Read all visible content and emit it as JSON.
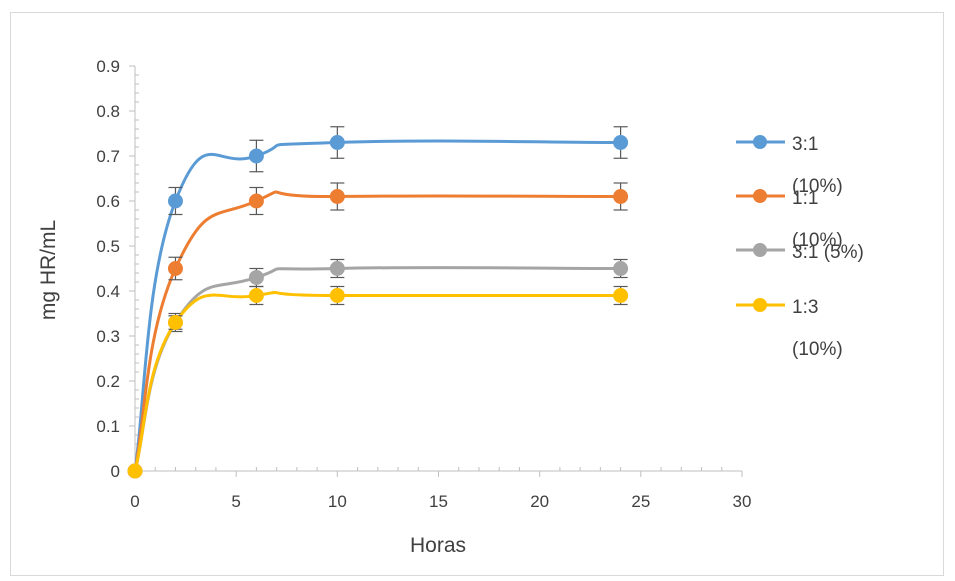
{
  "chart_data": {
    "type": "line",
    "xlabel": "Horas",
    "ylabel": "mg HR/mL",
    "xlim": [
      0,
      30
    ],
    "ylim": [
      0,
      0.9
    ],
    "xticks": [
      "0",
      "5",
      "10",
      "15",
      "20",
      "25",
      "30"
    ],
    "yticks": [
      "0",
      "0.1",
      "0.2",
      "0.3",
      "0.4",
      "0.5",
      "0.6",
      "0.7",
      "0.8",
      "0.9"
    ],
    "grid": false,
    "legend_position": "right",
    "x": [
      0,
      2,
      6,
      10,
      24
    ],
    "series": [
      {
        "name": "3:1\n(10%)",
        "color": "#5b9bd5",
        "values": [
          0,
          0.6,
          0.7,
          0.73,
          0.73
        ],
        "errors": [
          0,
          0.03,
          0.035,
          0.035,
          0.035
        ]
      },
      {
        "name": "1:1\n(10%)",
        "color": "#ed7d31",
        "values": [
          0,
          0.45,
          0.6,
          0.61,
          0.61
        ],
        "errors": [
          0,
          0.025,
          0.03,
          0.03,
          0.03
        ]
      },
      {
        "name": "3:1 (5%)",
        "color": "#a5a5a5",
        "values": [
          0,
          0.33,
          0.43,
          0.45,
          0.45
        ],
        "errors": [
          0,
          0.02,
          0.02,
          0.02,
          0.02
        ]
      },
      {
        "name": "1:3\n(10%)",
        "color": "#ffc000",
        "values": [
          0,
          0.33,
          0.39,
          0.39,
          0.39
        ],
        "errors": [
          0,
          0.015,
          0.02,
          0.02,
          0.02
        ]
      }
    ]
  }
}
